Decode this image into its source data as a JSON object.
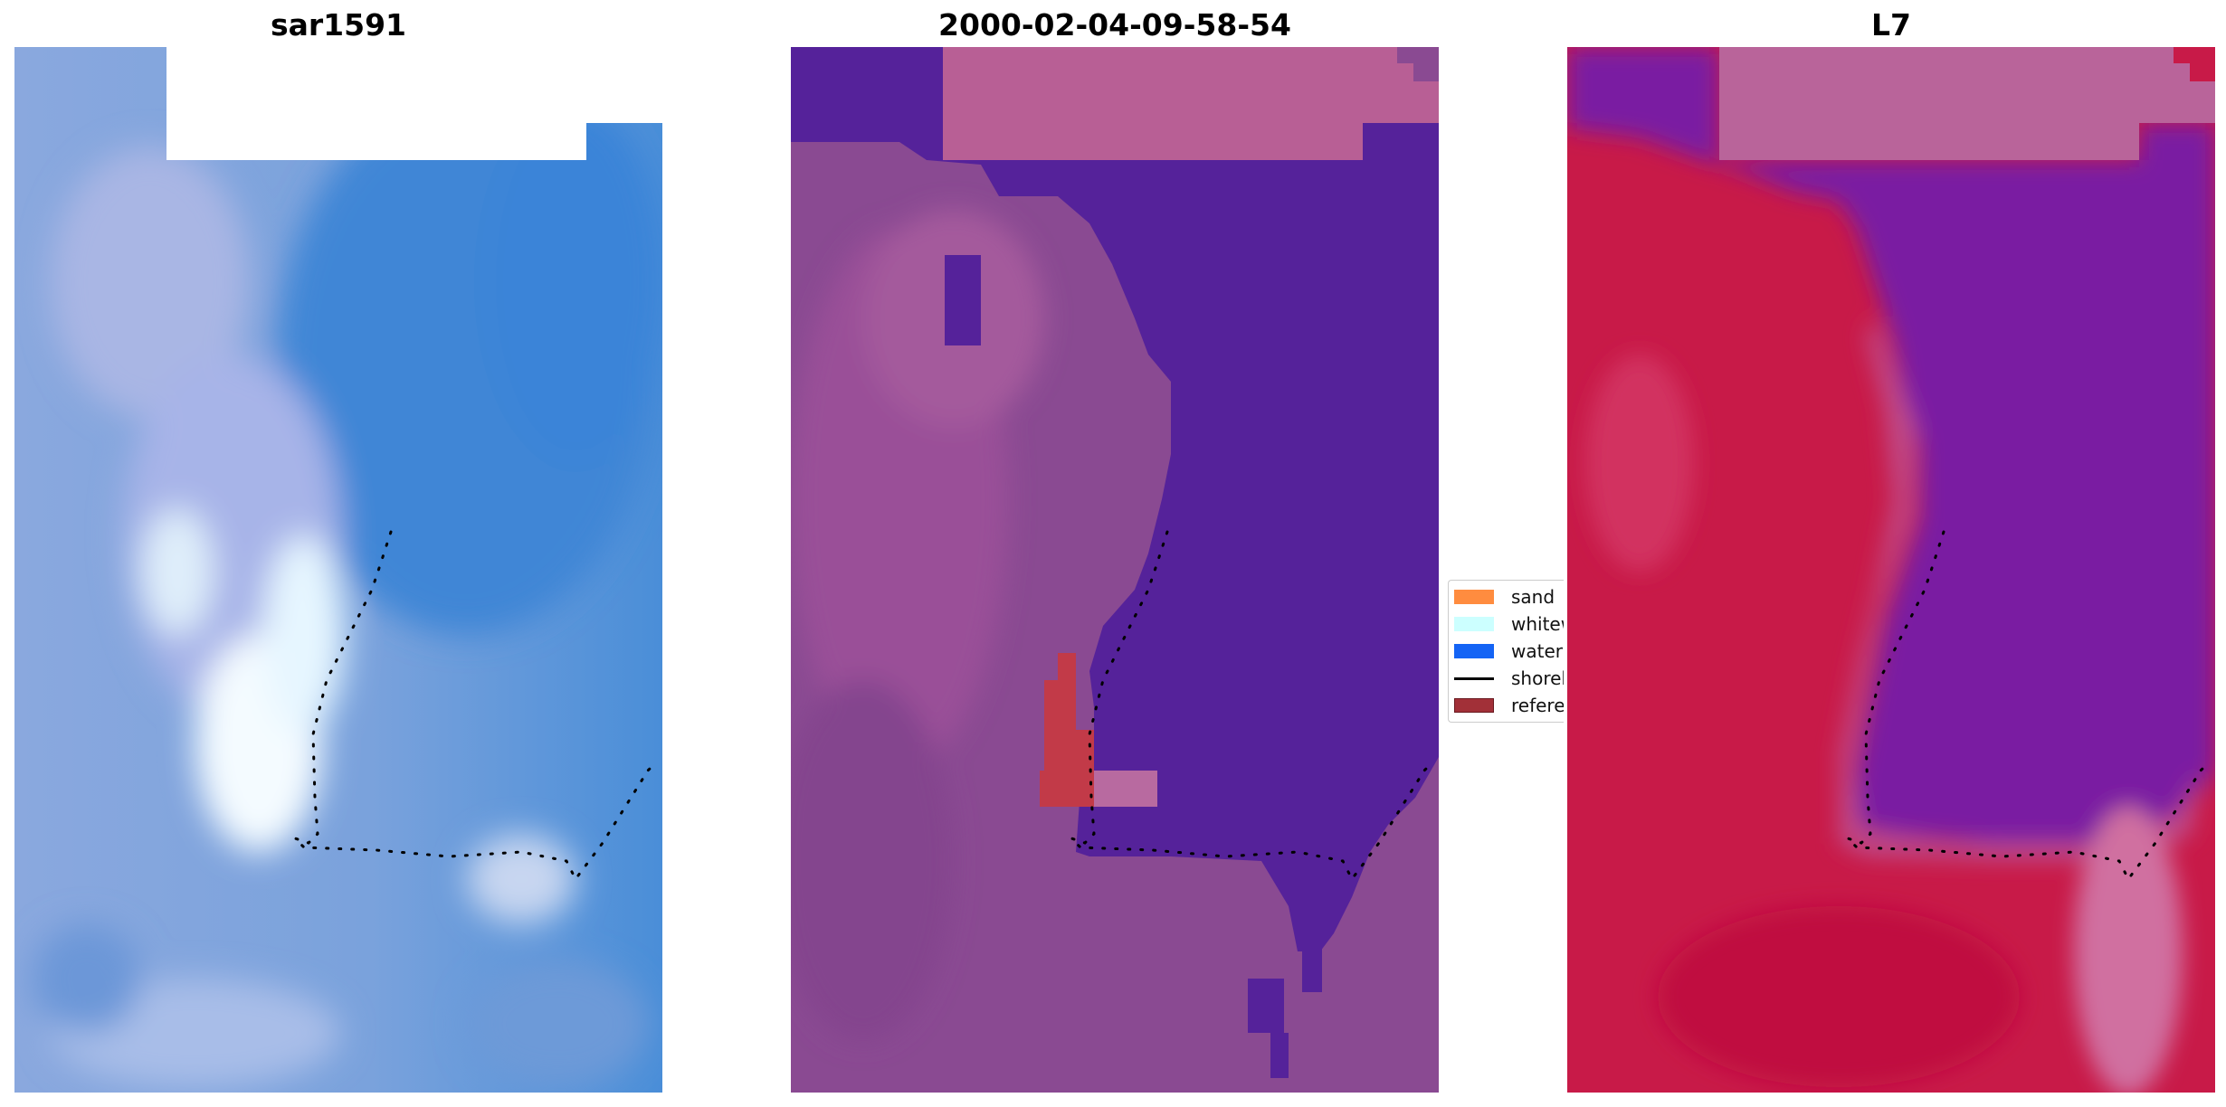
{
  "panels": [
    {
      "title": "sar1591"
    },
    {
      "title": "2000-02-04-09-58-54"
    },
    {
      "title": "L7"
    }
  ],
  "legend": [
    {
      "label": "sand",
      "color": "#ff8c3f"
    },
    {
      "label": "whitewater",
      "color": "#ccffff"
    },
    {
      "label": "water",
      "color": "#1464f5"
    },
    {
      "label": "shoreline",
      "color": "#000000"
    },
    {
      "label": "reference",
      "color": "#a23038"
    }
  ],
  "colors": {
    "sar_water": "#4a8ed8",
    "sar_land": "#8fa6dc",
    "sar_whitewater": "#eef8ff",
    "class_water": "#55229a",
    "class_land": "#8a4a92",
    "class_sand_overlay": "#b85f95",
    "class_reference": "#c23a48",
    "l7_water": "#7a1ea2",
    "l7_land": "#c81a48",
    "l7_cloud": "#b9649a"
  }
}
